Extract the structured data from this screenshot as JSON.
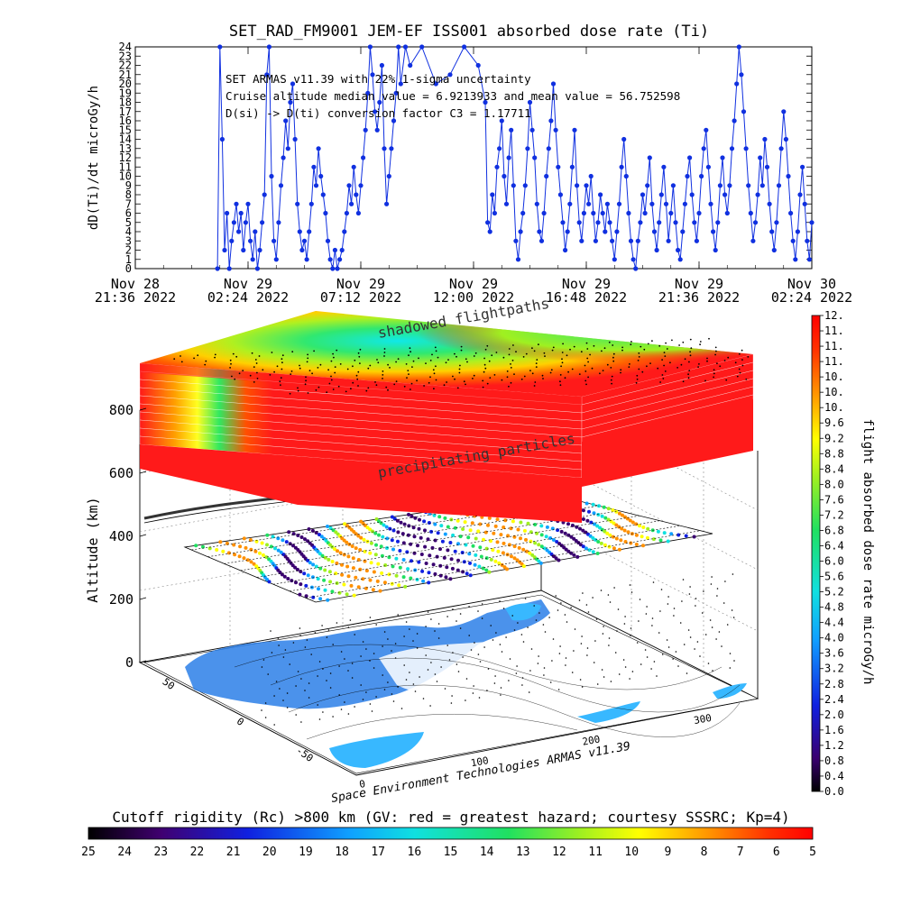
{
  "top_chart": {
    "title": "SET_RAD_FM9001  JEM-EF ISS001 absorbed dose rate (Ti)",
    "ylabel": "dD(Ti)/dt microGy/h",
    "annotations": [
      "SET ARMAS v11.39 with 22% 1-sigma uncertainty",
      "Cruise altitude median value = 6.9213933 and mean value = 56.752598",
      "D(si) -> D(ti) conversion factor C3 = 1.17711"
    ],
    "y_ticks": [
      "0",
      "1",
      "2",
      "3",
      "4",
      "5",
      "6",
      "7",
      "8",
      "9",
      "10",
      "11",
      "12",
      "13",
      "14",
      "15",
      "16",
      "17",
      "18",
      "19",
      "20",
      "21",
      "22",
      "23",
      "24"
    ],
    "x_ticks": [
      {
        "line1": "Nov 28",
        "line2": "21:36 2022"
      },
      {
        "line1": "Nov 29",
        "line2": "02:24 2022"
      },
      {
        "line1": "Nov 29",
        "line2": "07:12 2022"
      },
      {
        "line1": "Nov 29",
        "line2": "12:00 2022"
      },
      {
        "line1": "Nov 29",
        "line2": "16:48 2022"
      },
      {
        "line1": "Nov 29",
        "line2": "21:36 2022"
      },
      {
        "line1": "Nov 30",
        "line2": "02:24 2022"
      }
    ],
    "series_color": "#1030e0"
  },
  "chart_data": {
    "type": "line",
    "x_unit": "hours since Nov 28 21:36 2022",
    "ylim": [
      0,
      24
    ],
    "xlim": [
      0,
      28.8
    ],
    "points": [
      [
        3.5,
        0
      ],
      [
        3.6,
        24
      ],
      [
        3.7,
        14
      ],
      [
        3.8,
        2
      ],
      [
        3.9,
        6
      ],
      [
        4.0,
        0
      ],
      [
        4.1,
        3
      ],
      [
        4.2,
        5
      ],
      [
        4.3,
        7
      ],
      [
        4.4,
        4
      ],
      [
        4.5,
        6
      ],
      [
        4.6,
        2
      ],
      [
        4.7,
        5
      ],
      [
        4.8,
        7
      ],
      [
        4.9,
        3
      ],
      [
        5.0,
        1
      ],
      [
        5.1,
        4
      ],
      [
        5.2,
        0
      ],
      [
        5.3,
        2
      ],
      [
        5.4,
        5
      ],
      [
        5.5,
        8
      ],
      [
        5.6,
        21
      ],
      [
        5.7,
        24
      ],
      [
        5.8,
        10
      ],
      [
        5.9,
        3
      ],
      [
        6.0,
        1
      ],
      [
        6.1,
        5
      ],
      [
        6.2,
        9
      ],
      [
        6.3,
        12
      ],
      [
        6.4,
        16
      ],
      [
        6.5,
        13
      ],
      [
        6.6,
        18
      ],
      [
        6.7,
        20
      ],
      [
        6.8,
        14
      ],
      [
        6.9,
        7
      ],
      [
        7.0,
        4
      ],
      [
        7.1,
        2
      ],
      [
        7.2,
        3
      ],
      [
        7.3,
        1
      ],
      [
        7.4,
        4
      ],
      [
        7.5,
        7
      ],
      [
        7.6,
        11
      ],
      [
        7.7,
        9
      ],
      [
        7.8,
        13
      ],
      [
        7.9,
        10
      ],
      [
        8.0,
        8
      ],
      [
        8.1,
        6
      ],
      [
        8.2,
        3
      ],
      [
        8.3,
        1
      ],
      [
        8.4,
        0
      ],
      [
        8.5,
        2
      ],
      [
        8.6,
        0
      ],
      [
        8.7,
        1
      ],
      [
        8.8,
        2
      ],
      [
        8.9,
        4
      ],
      [
        9.0,
        6
      ],
      [
        9.1,
        9
      ],
      [
        9.2,
        7
      ],
      [
        9.3,
        11
      ],
      [
        9.4,
        8
      ],
      [
        9.5,
        6
      ],
      [
        9.6,
        9
      ],
      [
        9.7,
        12
      ],
      [
        9.8,
        15
      ],
      [
        9.9,
        19
      ],
      [
        10.0,
        24
      ],
      [
        10.1,
        21
      ],
      [
        10.2,
        17
      ],
      [
        10.3,
        15
      ],
      [
        10.4,
        18
      ],
      [
        10.5,
        22
      ],
      [
        10.6,
        13
      ],
      [
        10.7,
        7
      ],
      [
        10.8,
        10
      ],
      [
        10.9,
        13
      ],
      [
        11.0,
        16
      ],
      [
        11.1,
        19
      ],
      [
        11.2,
        24
      ],
      [
        11.3,
        20
      ],
      [
        11.5,
        24
      ],
      [
        11.7,
        22
      ],
      [
        12.2,
        24
      ],
      [
        12.8,
        20
      ],
      [
        13.4,
        21
      ],
      [
        14.0,
        24
      ],
      [
        14.6,
        22
      ],
      [
        14.9,
        18
      ],
      [
        15.0,
        5
      ],
      [
        15.1,
        4
      ],
      [
        15.2,
        8
      ],
      [
        15.3,
        6
      ],
      [
        15.4,
        11
      ],
      [
        15.5,
        13
      ],
      [
        15.6,
        16
      ],
      [
        15.7,
        10
      ],
      [
        15.8,
        7
      ],
      [
        15.9,
        12
      ],
      [
        16.0,
        15
      ],
      [
        16.1,
        9
      ],
      [
        16.2,
        3
      ],
      [
        16.3,
        1
      ],
      [
        16.4,
        4
      ],
      [
        16.5,
        6
      ],
      [
        16.6,
        9
      ],
      [
        16.7,
        13
      ],
      [
        16.8,
        18
      ],
      [
        16.9,
        15
      ],
      [
        17.0,
        12
      ],
      [
        17.1,
        7
      ],
      [
        17.2,
        4
      ],
      [
        17.3,
        3
      ],
      [
        17.4,
        6
      ],
      [
        17.5,
        10
      ],
      [
        17.6,
        13
      ],
      [
        17.7,
        16
      ],
      [
        17.8,
        20
      ],
      [
        17.9,
        15
      ],
      [
        18.0,
        11
      ],
      [
        18.1,
        8
      ],
      [
        18.2,
        5
      ],
      [
        18.3,
        2
      ],
      [
        18.4,
        4
      ],
      [
        18.5,
        7
      ],
      [
        18.6,
        11
      ],
      [
        18.7,
        15
      ],
      [
        18.8,
        9
      ],
      [
        18.9,
        5
      ],
      [
        19.0,
        3
      ],
      [
        19.1,
        6
      ],
      [
        19.2,
        9
      ],
      [
        19.3,
        7
      ],
      [
        19.4,
        10
      ],
      [
        19.5,
        6
      ],
      [
        19.6,
        3
      ],
      [
        19.7,
        5
      ],
      [
        19.8,
        8
      ],
      [
        19.9,
        6
      ],
      [
        20.0,
        4
      ],
      [
        20.1,
        7
      ],
      [
        20.2,
        5
      ],
      [
        20.3,
        3
      ],
      [
        20.4,
        1
      ],
      [
        20.5,
        4
      ],
      [
        20.6,
        7
      ],
      [
        20.7,
        11
      ],
      [
        20.8,
        14
      ],
      [
        20.9,
        10
      ],
      [
        21.0,
        6
      ],
      [
        21.1,
        3
      ],
      [
        21.2,
        1
      ],
      [
        21.3,
        0
      ],
      [
        21.4,
        3
      ],
      [
        21.5,
        5
      ],
      [
        21.6,
        8
      ],
      [
        21.7,
        6
      ],
      [
        21.8,
        9
      ],
      [
        21.9,
        12
      ],
      [
        22.0,
        7
      ],
      [
        22.1,
        4
      ],
      [
        22.2,
        2
      ],
      [
        22.3,
        5
      ],
      [
        22.4,
        8
      ],
      [
        22.5,
        11
      ],
      [
        22.6,
        7
      ],
      [
        22.7,
        3
      ],
      [
        22.8,
        6
      ],
      [
        22.9,
        9
      ],
      [
        23.0,
        5
      ],
      [
        23.1,
        2
      ],
      [
        23.2,
        1
      ],
      [
        23.3,
        4
      ],
      [
        23.4,
        7
      ],
      [
        23.5,
        10
      ],
      [
        23.6,
        12
      ],
      [
        23.7,
        8
      ],
      [
        23.8,
        5
      ],
      [
        23.9,
        3
      ],
      [
        24.0,
        6
      ],
      [
        24.1,
        10
      ],
      [
        24.2,
        13
      ],
      [
        24.3,
        15
      ],
      [
        24.4,
        11
      ],
      [
        24.5,
        7
      ],
      [
        24.6,
        4
      ],
      [
        24.7,
        2
      ],
      [
        24.8,
        5
      ],
      [
        24.9,
        9
      ],
      [
        25.0,
        12
      ],
      [
        25.1,
        8
      ],
      [
        25.2,
        6
      ],
      [
        25.3,
        9
      ],
      [
        25.4,
        13
      ],
      [
        25.5,
        16
      ],
      [
        25.6,
        20
      ],
      [
        25.7,
        24
      ],
      [
        25.8,
        21
      ],
      [
        25.9,
        17
      ],
      [
        26.0,
        13
      ],
      [
        26.1,
        9
      ],
      [
        26.2,
        6
      ],
      [
        26.3,
        3
      ],
      [
        26.4,
        5
      ],
      [
        26.5,
        8
      ],
      [
        26.6,
        12
      ],
      [
        26.7,
        9
      ],
      [
        26.8,
        14
      ],
      [
        26.9,
        11
      ],
      [
        27.0,
        7
      ],
      [
        27.1,
        4
      ],
      [
        27.2,
        2
      ],
      [
        27.3,
        5
      ],
      [
        27.4,
        9
      ],
      [
        27.5,
        13
      ],
      [
        27.6,
        17
      ],
      [
        27.7,
        14
      ],
      [
        27.8,
        10
      ],
      [
        27.9,
        6
      ],
      [
        28.0,
        3
      ],
      [
        28.1,
        1
      ],
      [
        28.2,
        4
      ],
      [
        28.3,
        8
      ],
      [
        28.4,
        11
      ],
      [
        28.5,
        7
      ],
      [
        28.6,
        3
      ],
      [
        28.7,
        1
      ],
      [
        28.8,
        5
      ]
    ]
  },
  "scene": {
    "labels": {
      "shadowed": "shadowed flightpaths",
      "precipitating": "precipitating particles",
      "credit": "Space Environment Technologies ARMAS v11.39",
      "alt_axis": "Altitude (km)"
    },
    "alt_ticks": [
      "0",
      "200",
      "400",
      "600",
      "800"
    ],
    "lat_ticks": [
      "50",
      "0",
      "-50"
    ],
    "lon_ticks": [
      "0",
      "100",
      "200",
      "300"
    ]
  },
  "right_colorbar": {
    "label": "flight absorbed dose rate microGy/h",
    "ticks": [
      "0.0",
      "0.4",
      "0.8",
      "1.2",
      "1.6",
      "2.0",
      "2.4",
      "2.8",
      "3.2",
      "3.6",
      "4.0",
      "4.4",
      "4.8",
      "5.2",
      "5.6",
      "6.0",
      "6.4",
      "6.8",
      "7.2",
      "7.6",
      "8.0",
      "8.4",
      "8.8",
      "9.2",
      "9.6",
      "10.",
      "10.",
      "10.",
      "11.",
      "11.",
      "11.",
      "12."
    ]
  },
  "bottom_colorbar": {
    "label": "Cutoff rigidity (Rc) >800 km (GV: red = greatest hazard; courtesy SSSRC; Kp=4)",
    "ticks": [
      "25",
      "24",
      "23",
      "22",
      "21",
      "20",
      "19",
      "18",
      "17",
      "16",
      "15",
      "14",
      "13",
      "12",
      "11",
      "10",
      "9",
      "8",
      "7",
      "6",
      "5"
    ]
  },
  "colors": {
    "hazard_red": "#ff1a1a",
    "hazard_green": "#2cf05a",
    "hazard_cyan": "#20e8e0",
    "land_blue": "#2c7fe8"
  }
}
